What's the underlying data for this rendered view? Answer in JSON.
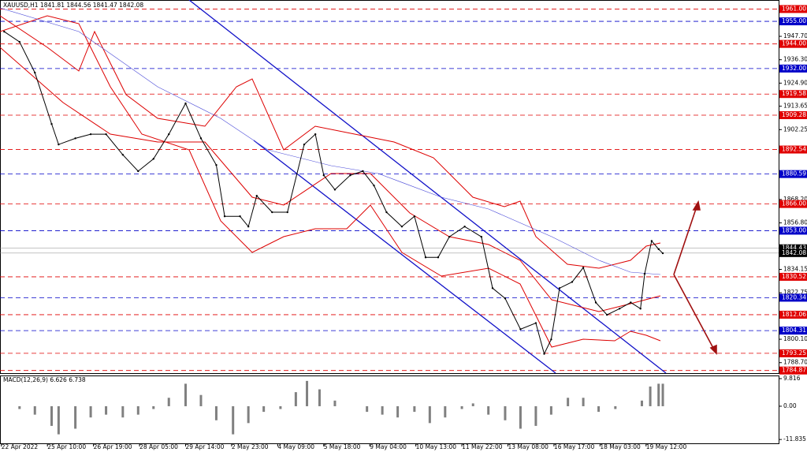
{
  "chart_data": {
    "type": "line",
    "title": "XAUUSD,H1  1841.81 1844.56 1841.47 1842.08",
    "xlim": [
      0,
      558
    ],
    "xticks": [
      {
        "value": 1,
        "label": "22 Apr 2022"
      },
      {
        "value": 34,
        "label": "25 Apr 10:00"
      },
      {
        "value": 67,
        "label": "26 Apr 19:00"
      },
      {
        "value": 100,
        "label": "28 Apr 05:00"
      },
      {
        "value": 133,
        "label": "29 Apr 14:00"
      },
      {
        "value": 166,
        "label": "2 May 23:00"
      },
      {
        "value": 199,
        "label": "4 May 09:00"
      },
      {
        "value": 232,
        "label": "5 May 18:00"
      },
      {
        "value": 265,
        "label": "9 May 04:00"
      },
      {
        "value": 298,
        "label": "10 May 13:00"
      },
      {
        "value": 331,
        "label": "11 May 22:00"
      },
      {
        "value": 364,
        "label": "13 May 08:00"
      },
      {
        "value": 397,
        "label": "16 May 17:00"
      },
      {
        "value": 430,
        "label": "18 May 03:00"
      },
      {
        "value": 463,
        "label": "19 May 12:00"
      }
    ],
    "ylim": [
      1783.6,
      1965.4
    ],
    "yticks": [
      {
        "value": 1947.7,
        "label": "1947.70"
      },
      {
        "value": 1936.3,
        "label": "1936.30"
      },
      {
        "value": 1924.9,
        "label": "1924.90"
      },
      1913.65,
      1902.25,
      {
        "value": 1868.2,
        "label": "1868.20"
      },
      {
        "value": 1856.8,
        "label": "1856.80"
      },
      1834.15,
      1822.75,
      {
        "value": 1800.1,
        "label": "1800.10"
      },
      {
        "value": 1788.7,
        "label": "1788.70"
      }
    ],
    "series": [
      {
        "name": "XAUUSD,H1",
        "color": "#000000",
        "x": [
          3,
          14,
          25,
          37,
          42,
          54,
          65,
          76,
          88,
          99,
          110,
          121,
          133,
          144,
          155,
          161,
          172,
          178,
          184,
          195,
          206,
          218,
          226,
          232,
          240,
          251,
          260,
          268,
          277,
          288,
          297,
          305,
          314,
          322,
          333,
          345,
          353,
          362,
          373,
          384,
          390,
          395,
          401,
          410,
          418,
          427,
          435,
          444,
          452,
          459,
          462,
          467,
          472,
          475
        ],
        "values": [
          1950,
          1945,
          1930,
          1905,
          1895,
          1898,
          1900,
          1900,
          1890,
          1882,
          1888,
          1900,
          1915,
          1898,
          1885,
          1860,
          1860,
          1855,
          1870,
          1862,
          1862,
          1895,
          1900,
          1880,
          1873,
          1880,
          1882,
          1875,
          1862,
          1855,
          1860,
          1840,
          1840,
          1850,
          1855,
          1850,
          1825,
          1820,
          1805,
          1808,
          1793,
          1800,
          1825,
          1828,
          1835,
          1818,
          1812,
          1815,
          1818,
          1815,
          1832,
          1848,
          1844,
          1842
        ]
      }
    ],
    "red_levels": {
      "color": "#e00000",
      "levels": [
        {
          "value": 1961,
          "label": "1961.00"
        },
        {
          "value": 1944,
          "label": "1944.00"
        },
        1919.58,
        1909.28,
        1892.54,
        {
          "value": 1866,
          "label": "1866.00"
        },
        1830.52,
        1812.06,
        1793.25,
        1784.87
      ]
    },
    "blue_levels": {
      "color": "#0000c8",
      "levels": [
        {
          "value": 1955,
          "label": "1955.00"
        },
        {
          "value": 1932,
          "label": "1932.00"
        },
        1880.59,
        {
          "value": 1853,
          "label": "1853.00"
        },
        1820.34,
        1804.31
      ]
    },
    "price_labels": {
      "color": "#000000",
      "levels": [
        1844.43,
        1842.08
      ]
    },
    "macd": {
      "type": "bar",
      "title": "MACD(12,26,9) 6.626 6.738",
      "color": "#808080",
      "ylim": [
        -13.2,
        10.65
      ],
      "yticks": [
        9.816,
        {
          "value": 0,
          "label": "0.00"
        },
        -11.835
      ],
      "x": [
        3,
        14,
        25,
        37,
        42,
        54,
        65,
        76,
        88,
        99,
        110,
        121,
        133,
        144,
        155,
        167,
        178,
        189,
        201,
        212,
        220,
        229,
        240,
        251,
        263,
        274,
        285,
        297,
        308,
        319,
        331,
        339,
        350,
        362,
        373,
        384,
        395,
        407,
        418,
        429,
        441,
        452,
        460,
        466,
        472,
        475
      ],
      "values": [
        0,
        -1,
        -3,
        -7,
        -10,
        -8,
        -4,
        -3,
        -4,
        -3,
        -1,
        3,
        8,
        4,
        -5,
        -10,
        -6,
        -2,
        -1,
        5,
        9,
        6,
        2,
        0,
        -2,
        -3,
        -4,
        -2,
        -6,
        -4,
        -1,
        1,
        -3,
        -5,
        -8,
        -7,
        -3,
        3,
        3,
        -2,
        -1,
        0,
        2,
        7,
        8,
        8
      ]
    }
  }
}
